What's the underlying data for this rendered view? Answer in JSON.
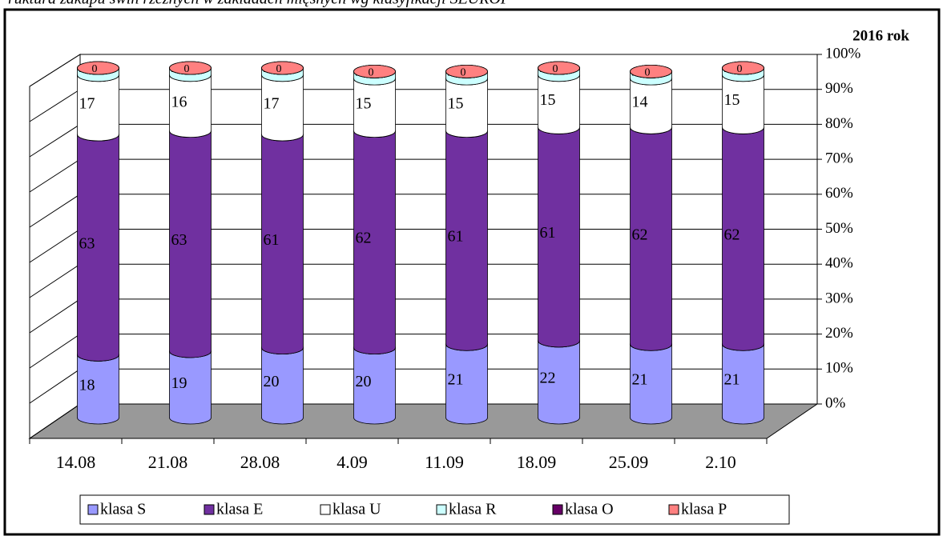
{
  "chart_data": {
    "type": "bar3d-stacked-cylinder",
    "title": "ruktura zakupu świń rzeźnych w zakładach mięsnych wg klasyfikacji SEUROP",
    "annotation": "2016 rok",
    "categories": [
      "14.08",
      "21.08",
      "28.08",
      "4.09",
      "11.09",
      "18.09",
      "25.09",
      "2.10"
    ],
    "series": [
      {
        "name": "klasa S",
        "color": "#9999ff",
        "values": [
          18,
          19,
          20,
          20,
          21,
          22,
          21,
          21
        ]
      },
      {
        "name": "klasa E",
        "color": "#7030a0",
        "values": [
          63,
          63,
          61,
          62,
          61,
          61,
          62,
          62
        ]
      },
      {
        "name": "klasa U",
        "color": "#ffffff",
        "values": [
          17,
          16,
          17,
          15,
          15,
          15,
          14,
          15
        ]
      },
      {
        "name": "klasa R",
        "color": "#ccffff",
        "values": [
          2,
          2,
          2,
          2,
          2,
          2,
          2,
          2
        ]
      },
      {
        "name": "klasa O",
        "color": "#660066",
        "values": [
          0,
          0,
          0,
          0,
          0,
          0,
          0,
          0
        ]
      },
      {
        "name": "klasa P",
        "color": "#ff8080",
        "values": [
          0,
          0,
          0,
          0,
          0,
          0,
          0,
          0
        ]
      }
    ],
    "ylim": [
      0,
      100
    ],
    "yticks": [
      {
        "value": 0,
        "label": "0%"
      },
      {
        "value": 10,
        "label": "10%"
      },
      {
        "value": 20,
        "label": "20%"
      },
      {
        "value": 30,
        "label": "30%"
      },
      {
        "value": 40,
        "label": "40%"
      },
      {
        "value": 50,
        "label": "50%"
      },
      {
        "value": 60,
        "label": "60%"
      },
      {
        "value": 70,
        "label": "70%"
      },
      {
        "value": 80,
        "label": "80%"
      },
      {
        "value": 90,
        "label": "90%"
      },
      {
        "value": 100,
        "label": "100%"
      }
    ],
    "grid": true,
    "legend": "bottom"
  }
}
